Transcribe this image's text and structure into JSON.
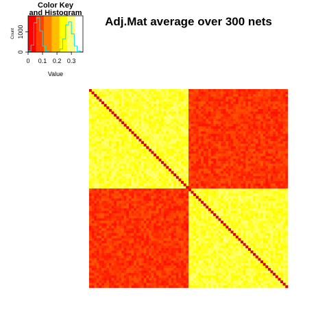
{
  "chart_data": {
    "type": "heatmap",
    "title": "Adj.Mat average over 300 nets",
    "matrix_size": 80,
    "block_size": 40,
    "diagonal_value": 0.38,
    "within_block_mean": 0.28,
    "between_block_mean": 0.05,
    "colormap": [
      "#ff0000",
      "#ff4000",
      "#ff8000",
      "#ffbf00",
      "#ffff00",
      "#ffff80",
      "#ffffff"
    ],
    "color_key": {
      "title_line1": "Color Key",
      "title_line2": "and Histogram",
      "xlabel": "Value",
      "ylabel": "Count",
      "x_ticks": [
        "0",
        "0.1",
        "0.2",
        "0.3"
      ],
      "x_tick_values": [
        0,
        0.1,
        0.2,
        0.3
      ],
      "xlim": [
        0,
        0.38
      ],
      "y_ticks": [
        "0",
        "1000"
      ],
      "y_tick_values": [
        0,
        1000
      ],
      "ylim": [
        0,
        1800
      ],
      "histogram_color": "#00e5ee",
      "histogram": [
        {
          "x": 0.0,
          "count": 60
        },
        {
          "x": 0.02,
          "count": 350
        },
        {
          "x": 0.04,
          "count": 1450
        },
        {
          "x": 0.06,
          "count": 1700
        },
        {
          "x": 0.08,
          "count": 1050
        },
        {
          "x": 0.1,
          "count": 300
        },
        {
          "x": 0.12,
          "count": 40
        },
        {
          "x": 0.14,
          "count": 0
        },
        {
          "x": 0.16,
          "count": 0
        },
        {
          "x": 0.18,
          "count": 0
        },
        {
          "x": 0.2,
          "count": 20
        },
        {
          "x": 0.22,
          "count": 150
        },
        {
          "x": 0.24,
          "count": 650
        },
        {
          "x": 0.26,
          "count": 1350
        },
        {
          "x": 0.28,
          "count": 1500
        },
        {
          "x": 0.3,
          "count": 900
        },
        {
          "x": 0.32,
          "count": 300
        },
        {
          "x": 0.34,
          "count": 60
        },
        {
          "x": 0.36,
          "count": 20
        }
      ]
    }
  }
}
